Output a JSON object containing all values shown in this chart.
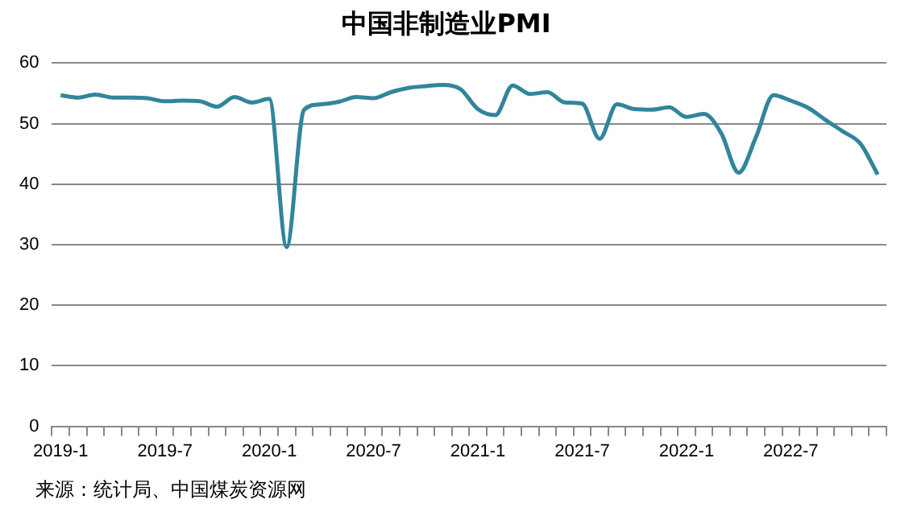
{
  "chart_data": {
    "type": "line",
    "title": "中国非制造业PMI",
    "categories": [
      "2019-1",
      null,
      null,
      null,
      null,
      null,
      "2019-7",
      null,
      null,
      null,
      null,
      null,
      "2020-1",
      null,
      null,
      null,
      null,
      null,
      "2020-7",
      null,
      null,
      null,
      null,
      null,
      "2021-1",
      null,
      null,
      null,
      null,
      null,
      "2021-7",
      null,
      null,
      null,
      null,
      null,
      "2022-1",
      null,
      null,
      null,
      null,
      null,
      "2022-7",
      null,
      null,
      null,
      null,
      null
    ],
    "series": [
      {
        "color": "#31859c",
        "values": [
          54.7,
          54.3,
          54.8,
          54.3,
          54.3,
          54.2,
          53.7,
          53.8,
          53.7,
          52.8,
          54.4,
          53.5,
          54.1,
          29.6,
          52.3,
          53.2,
          53.6,
          54.4,
          54.2,
          55.2,
          55.9,
          56.2,
          56.4,
          55.7,
          52.4,
          51.4,
          56.3,
          54.9,
          55.2,
          53.5,
          53.3,
          47.5,
          53.2,
          52.4,
          52.3,
          52.7,
          51.1,
          51.6,
          48.4,
          41.9,
          47.8,
          54.7,
          53.8,
          52.6,
          50.6,
          48.7,
          46.7,
          41.6
        ]
      }
    ],
    "ylim": [
      0,
      60
    ],
    "yticks": [
      0,
      10,
      20,
      30,
      40,
      50,
      60
    ],
    "grid": "y",
    "legend": false,
    "marker": "none",
    "line_style": "solid",
    "annotations": [
      "来源：统计局、中国煤炭资源网"
    ]
  }
}
